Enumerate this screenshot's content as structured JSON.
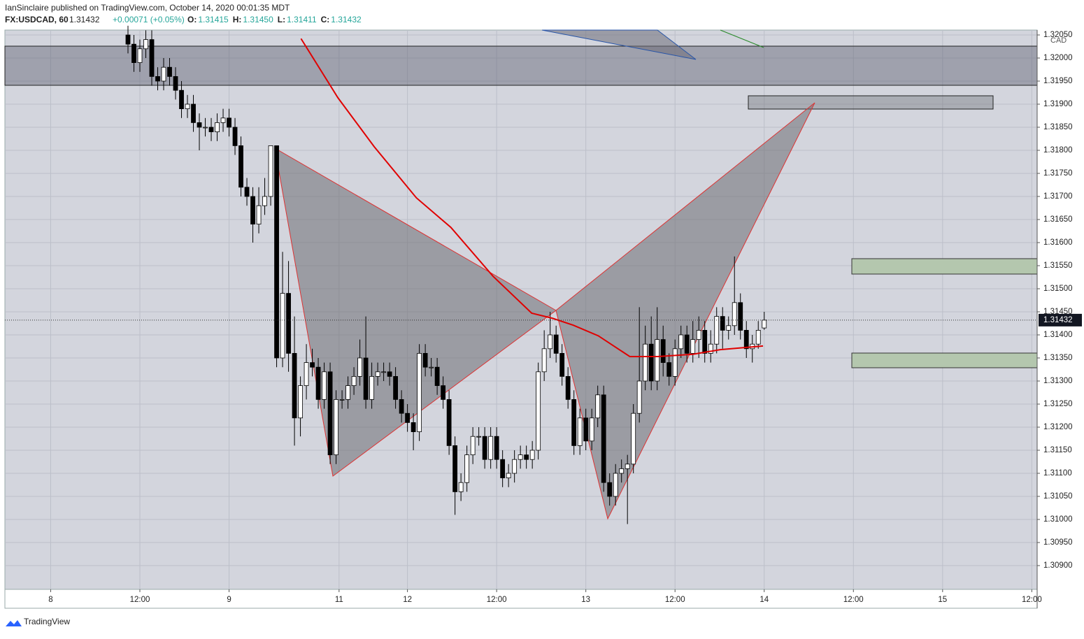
{
  "header": {
    "publisher": "IanSinclaire published on TradingView.com, October 14, 2020 00:01:35 MDT",
    "symbol": "FX:USDCAD, 60",
    "last": "1.31432",
    "change": "+0.00071 (+0.05%)",
    "ohlc": [
      [
        "O:",
        "1.31415"
      ],
      [
        "H:",
        "1.31450"
      ],
      [
        "L:",
        "1.31411"
      ],
      [
        "C:",
        "1.31432"
      ]
    ]
  },
  "chart_data": {
    "type": "candlestick",
    "currency": "CAD",
    "xlim": [
      -20.7,
      152.9
    ],
    "ylim": [
      1.308485,
      1.320606
    ],
    "xticks": [
      {
        "value": -13,
        "label": "8"
      },
      {
        "value": 2,
        "label": "12:00"
      },
      {
        "value": 17,
        "label": "9"
      },
      {
        "value": 35.5,
        "label": "11"
      },
      {
        "value": 47,
        "label": "12"
      },
      {
        "value": 62,
        "label": "12:00"
      },
      {
        "value": 77,
        "label": "13"
      },
      {
        "value": 92,
        "label": "12:00"
      },
      {
        "value": 107,
        "label": "14"
      },
      {
        "value": 122,
        "label": "12:00"
      },
      {
        "value": 137,
        "label": "15"
      },
      {
        "value": 152,
        "label": "12:00"
      }
    ],
    "yticks": [
      {
        "value": 1.309,
        "label": "1.30900"
      },
      {
        "value": 1.3095,
        "label": "1.30950"
      },
      {
        "value": 1.31,
        "label": "1.31000"
      },
      {
        "value": 1.3105,
        "label": "1.31050"
      },
      {
        "value": 1.311,
        "label": "1.31100"
      },
      {
        "value": 1.3115,
        "label": "1.31150"
      },
      {
        "value": 1.312,
        "label": "1.31200"
      },
      {
        "value": 1.3125,
        "label": "1.31250"
      },
      {
        "value": 1.313,
        "label": "1.31300"
      },
      {
        "value": 1.3135,
        "label": "1.31350"
      },
      {
        "value": 1.314,
        "label": "1.31400"
      },
      {
        "value": 1.3145,
        "label": "1.31450"
      },
      {
        "value": 1.315,
        "label": "1.31500"
      },
      {
        "value": 1.3155,
        "label": "1.31550"
      },
      {
        "value": 1.316,
        "label": "1.31600"
      },
      {
        "value": 1.3165,
        "label": "1.31650"
      },
      {
        "value": 1.317,
        "label": "1.31700"
      },
      {
        "value": 1.3175,
        "label": "1.31750"
      },
      {
        "value": 1.318,
        "label": "1.31800"
      },
      {
        "value": 1.3185,
        "label": "1.31850"
      },
      {
        "value": 1.319,
        "label": "1.31900"
      },
      {
        "value": 1.3195,
        "label": "1.31950"
      },
      {
        "value": 1.32,
        "label": "1.32000"
      },
      {
        "value": 1.3205,
        "label": "1.32050"
      }
    ],
    "grid": true,
    "up_color": "#ffffff",
    "down_color": "#000000",
    "last_price": {
      "value": 1.31432,
      "label": "1.31432"
    },
    "open": [
      1.3205,
      1.3203,
      1.3199,
      1.3202,
      1.3204,
      1.3196,
      1.3195,
      1.3198,
      1.3196,
      1.3193,
      1.3189,
      1.319,
      1.3186,
      1.3185,
      1.3185,
      1.3184,
      1.3186,
      1.3187,
      1.3185,
      1.3181,
      1.3172,
      1.317,
      1.3164,
      1.3168,
      1.317,
      1.3181,
      1.3135,
      1.3149,
      1.3136,
      1.3122,
      1.3129,
      1.3134,
      1.3133,
      1.3126,
      1.3132,
      1.3114,
      1.3126,
      1.3126,
      1.3129,
      1.3131,
      1.3135,
      1.3126,
      1.3131,
      1.3132,
      1.3132,
      1.3131,
      1.3126,
      1.3123,
      1.3121,
      1.3119,
      1.3136,
      1.3133,
      1.3133,
      1.3129,
      1.3126,
      1.3116,
      1.3106,
      1.3108,
      1.3114,
      1.3118,
      1.3118,
      1.3113,
      1.3118,
      1.3113,
      1.3109,
      1.311,
      1.3113,
      1.3114,
      1.3113,
      1.3115,
      1.3132,
      1.3137,
      1.314,
      1.3136,
      1.3131,
      1.3126,
      1.3116,
      1.3122,
      1.3117,
      1.3122,
      1.3127,
      1.3108,
      1.3105,
      1.311,
      1.3111,
      1.3112,
      1.3123,
      1.313,
      1.3138,
      1.313,
      1.3139,
      1.3134,
      1.3131,
      1.3137,
      1.314,
      1.3136,
      1.3139,
      1.3141,
      1.3136,
      1.3138,
      1.3144,
      1.3141,
      1.3142,
      1.3147,
      1.3141,
      1.3137,
      1.3138,
      1.31415
    ],
    "high": [
      1.3207,
      1.3205,
      1.3204,
      1.3206,
      1.3206,
      1.3198,
      1.32,
      1.32,
      1.3198,
      1.3195,
      1.3192,
      1.3192,
      1.3188,
      1.3187,
      1.3187,
      1.3188,
      1.3189,
      1.3189,
      1.3187,
      1.3183,
      1.3174,
      1.3172,
      1.3172,
      1.3174,
      1.3181,
      1.3181,
      1.3158,
      1.3156,
      1.3144,
      1.3131,
      1.3138,
      1.3137,
      1.3135,
      1.3134,
      1.3134,
      1.3128,
      1.3128,
      1.3131,
      1.3133,
      1.3139,
      1.3144,
      1.3134,
      1.3134,
      1.3134,
      1.3134,
      1.3133,
      1.3128,
      1.3125,
      1.3123,
      1.3138,
      1.3138,
      1.3135,
      1.3135,
      1.3131,
      1.3128,
      1.3118,
      1.311,
      1.3116,
      1.312,
      1.312,
      1.312,
      1.312,
      1.312,
      1.3115,
      1.3112,
      1.3115,
      1.3116,
      1.3116,
      1.3117,
      1.3134,
      1.3141,
      1.3145,
      1.3142,
      1.3138,
      1.3133,
      1.3128,
      1.3124,
      1.3124,
      1.3124,
      1.3129,
      1.3129,
      1.311,
      1.3112,
      1.3113,
      1.3114,
      1.3125,
      1.3146,
      1.3142,
      1.3144,
      1.3146,
      1.3142,
      1.3136,
      1.3139,
      1.3142,
      1.3142,
      1.3143,
      1.3144,
      1.3143,
      1.3141,
      1.3146,
      1.3146,
      1.3144,
      1.3157,
      1.3149,
      1.3143,
      1.314,
      1.3143,
      1.3145
    ],
    "low": [
      1.3201,
      1.3197,
      1.3197,
      1.32,
      1.3194,
      1.3193,
      1.3193,
      1.3194,
      1.3191,
      1.3187,
      1.3187,
      1.3184,
      1.318,
      1.3183,
      1.3182,
      1.3182,
      1.3184,
      1.3183,
      1.3179,
      1.317,
      1.3168,
      1.316,
      1.3162,
      1.3166,
      1.3168,
      1.3133,
      1.3133,
      1.3132,
      1.3116,
      1.3118,
      1.3126,
      1.3131,
      1.3124,
      1.3124,
      1.3112,
      1.3112,
      1.3124,
      1.3124,
      1.3127,
      1.3129,
      1.3124,
      1.3124,
      1.3129,
      1.313,
      1.3129,
      1.3124,
      1.3121,
      1.3119,
      1.3115,
      1.3117,
      1.3131,
      1.3131,
      1.3127,
      1.3124,
      1.3114,
      1.3101,
      1.3104,
      1.3106,
      1.3112,
      1.3116,
      1.3111,
      1.3111,
      1.3111,
      1.3107,
      1.3107,
      1.3108,
      1.3111,
      1.3111,
      1.3111,
      1.3113,
      1.313,
      1.3135,
      1.3134,
      1.3129,
      1.3124,
      1.3114,
      1.3114,
      1.3115,
      1.3115,
      1.312,
      1.3106,
      1.3103,
      1.3103,
      1.3108,
      1.3099,
      1.311,
      1.3121,
      1.3128,
      1.3128,
      1.3128,
      1.3131,
      1.3129,
      1.3129,
      1.3135,
      1.3134,
      1.3134,
      1.3135,
      1.3134,
      1.3134,
      1.3136,
      1.3137,
      1.3139,
      1.314,
      1.3139,
      1.3135,
      1.3134,
      1.3137,
      1.31411
    ],
    "close": [
      1.3203,
      1.3199,
      1.3202,
      1.3204,
      1.3196,
      1.3195,
      1.3198,
      1.3196,
      1.3193,
      1.3189,
      1.319,
      1.3186,
      1.3185,
      1.3185,
      1.3184,
      1.3186,
      1.3187,
      1.3185,
      1.3181,
      1.3172,
      1.317,
      1.3164,
      1.3168,
      1.317,
      1.3181,
      1.3135,
      1.3149,
      1.3136,
      1.3122,
      1.3129,
      1.3134,
      1.3133,
      1.3126,
      1.3132,
      1.3114,
      1.3126,
      1.3126,
      1.3129,
      1.3131,
      1.3135,
      1.3126,
      1.3131,
      1.3132,
      1.3132,
      1.3131,
      1.3126,
      1.3123,
      1.3121,
      1.3119,
      1.3136,
      1.3133,
      1.3133,
      1.3129,
      1.3126,
      1.3116,
      1.3106,
      1.3108,
      1.3114,
      1.3118,
      1.3118,
      1.3113,
      1.3118,
      1.3113,
      1.3109,
      1.311,
      1.3113,
      1.3114,
      1.3113,
      1.3115,
      1.3132,
      1.3137,
      1.314,
      1.3136,
      1.3131,
      1.3126,
      1.3116,
      1.3122,
      1.3117,
      1.3122,
      1.3127,
      1.3108,
      1.3105,
      1.311,
      1.3111,
      1.3112,
      1.3123,
      1.313,
      1.3138,
      1.313,
      1.3139,
      1.3134,
      1.3131,
      1.3137,
      1.314,
      1.3136,
      1.3139,
      1.3141,
      1.3136,
      1.3138,
      1.3144,
      1.3141,
      1.3142,
      1.3147,
      1.3141,
      1.3137,
      1.3138,
      1.3141,
      1.31432
    ],
    "ma": {
      "color": "#e00000",
      "x": [
        29.1,
        35.3,
        41.4,
        48.5,
        54.3,
        61.4,
        67.9,
        71.4,
        74.9,
        79.1,
        84.4,
        89.1,
        95,
        99.6,
        106.8
      ],
      "values": [
        1.32042,
        1.31914,
        1.31808,
        1.31697,
        1.31633,
        1.31527,
        1.31447,
        1.31436,
        1.31421,
        1.31398,
        1.31353,
        1.31353,
        1.31358,
        1.31368,
        1.31376
      ]
    }
  },
  "footer": {
    "brand": "TradingView"
  }
}
